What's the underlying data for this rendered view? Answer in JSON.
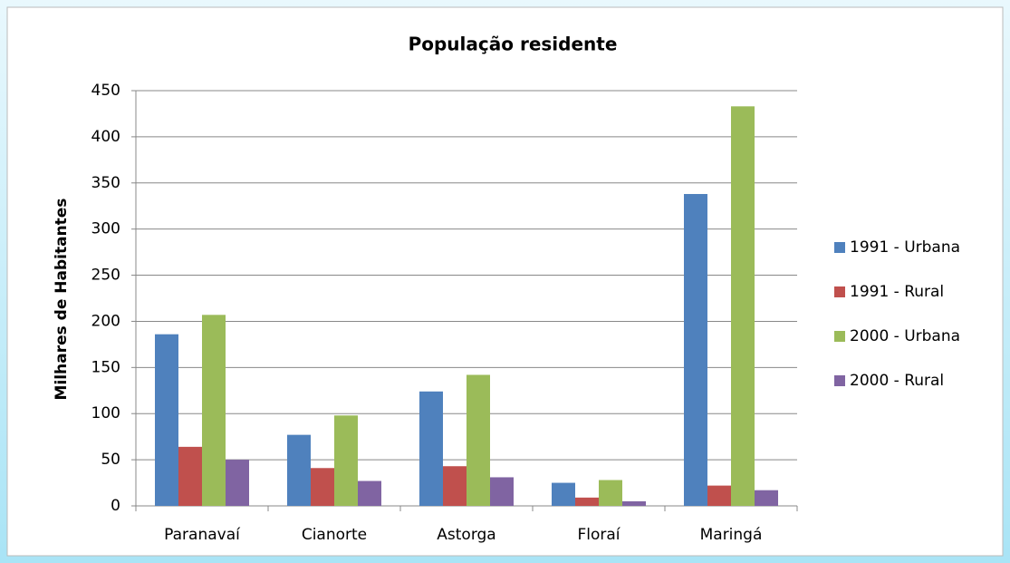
{
  "chart_data": {
    "type": "bar",
    "title": "População residente",
    "ylabel": "Milhares de Habitantes",
    "categories": [
      "Paranavaí",
      "Cianorte",
      "Astorga",
      "Floraí",
      "Maringá"
    ],
    "series": [
      {
        "name": "1991 - Urbana",
        "color": "#4f81bd",
        "values": [
          186,
          77,
          124,
          25,
          338
        ]
      },
      {
        "name": "1991 - Rural",
        "color": "#c0504d",
        "values": [
          64,
          41,
          43,
          9,
          22
        ]
      },
      {
        "name": "2000 - Urbana",
        "color": "#9bbb59",
        "values": [
          207,
          98,
          142,
          28,
          433
        ]
      },
      {
        "name": "2000 - Rural",
        "color": "#8064a2",
        "values": [
          50,
          27,
          31,
          5,
          17
        ]
      }
    ],
    "ylim": [
      0,
      450
    ],
    "yticks": [
      0,
      50,
      100,
      150,
      200,
      250,
      300,
      350,
      400,
      450
    ],
    "grid": true,
    "legend": "right"
  }
}
